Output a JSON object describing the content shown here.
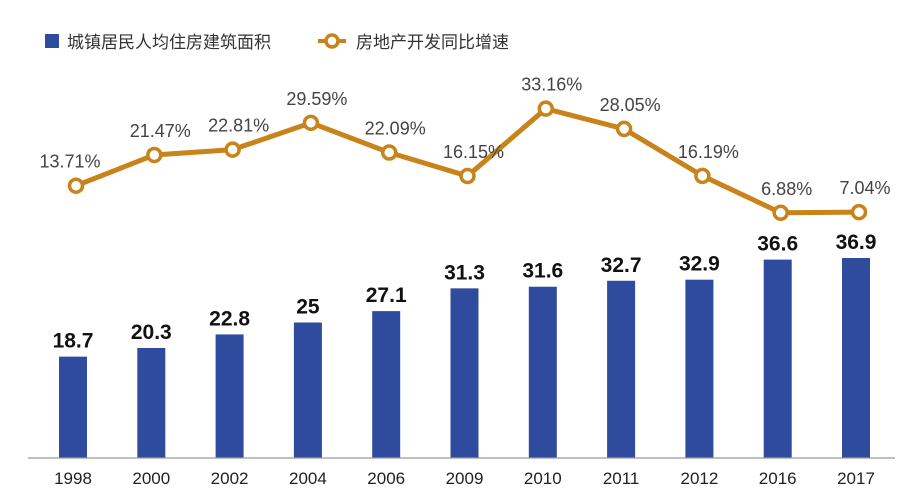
{
  "chart_data": {
    "type": "bar",
    "categories": [
      "1998",
      "2000",
      "2002",
      "2004",
      "2006",
      "2009",
      "2010",
      "2011",
      "2012",
      "2016",
      "2017"
    ],
    "series": [
      {
        "name": "城镇居民人均住房建筑面积",
        "type": "bar",
        "values": [
          18.7,
          20.3,
          22.8,
          25,
          27.1,
          31.3,
          31.6,
          32.7,
          32.9,
          36.6,
          36.9
        ],
        "labels": [
          "18.7",
          "20.3",
          "22.8",
          "25",
          "27.1",
          "31.3",
          "31.6",
          "32.7",
          "32.9",
          "36.6",
          "36.9"
        ]
      },
      {
        "name": "房地产开发同比增速",
        "type": "line",
        "values": [
          13.71,
          21.47,
          22.81,
          29.59,
          22.09,
          16.15,
          33.16,
          28.05,
          16.19,
          6.88,
          7.04
        ],
        "labels": [
          "13.71%",
          "21.47%",
          "22.81%",
          "29.59%",
          "22.09%",
          "16.15%",
          "33.16%",
          "28.05%",
          "16.19%",
          "6.88%",
          "7.04%"
        ]
      }
    ],
    "legend": "top-left",
    "grid": false,
    "colors": {
      "bar": "#2e4b9e",
      "line": "#c8831a",
      "marker_fill": "#ffffff",
      "axis": "#9a9a9a"
    }
  }
}
